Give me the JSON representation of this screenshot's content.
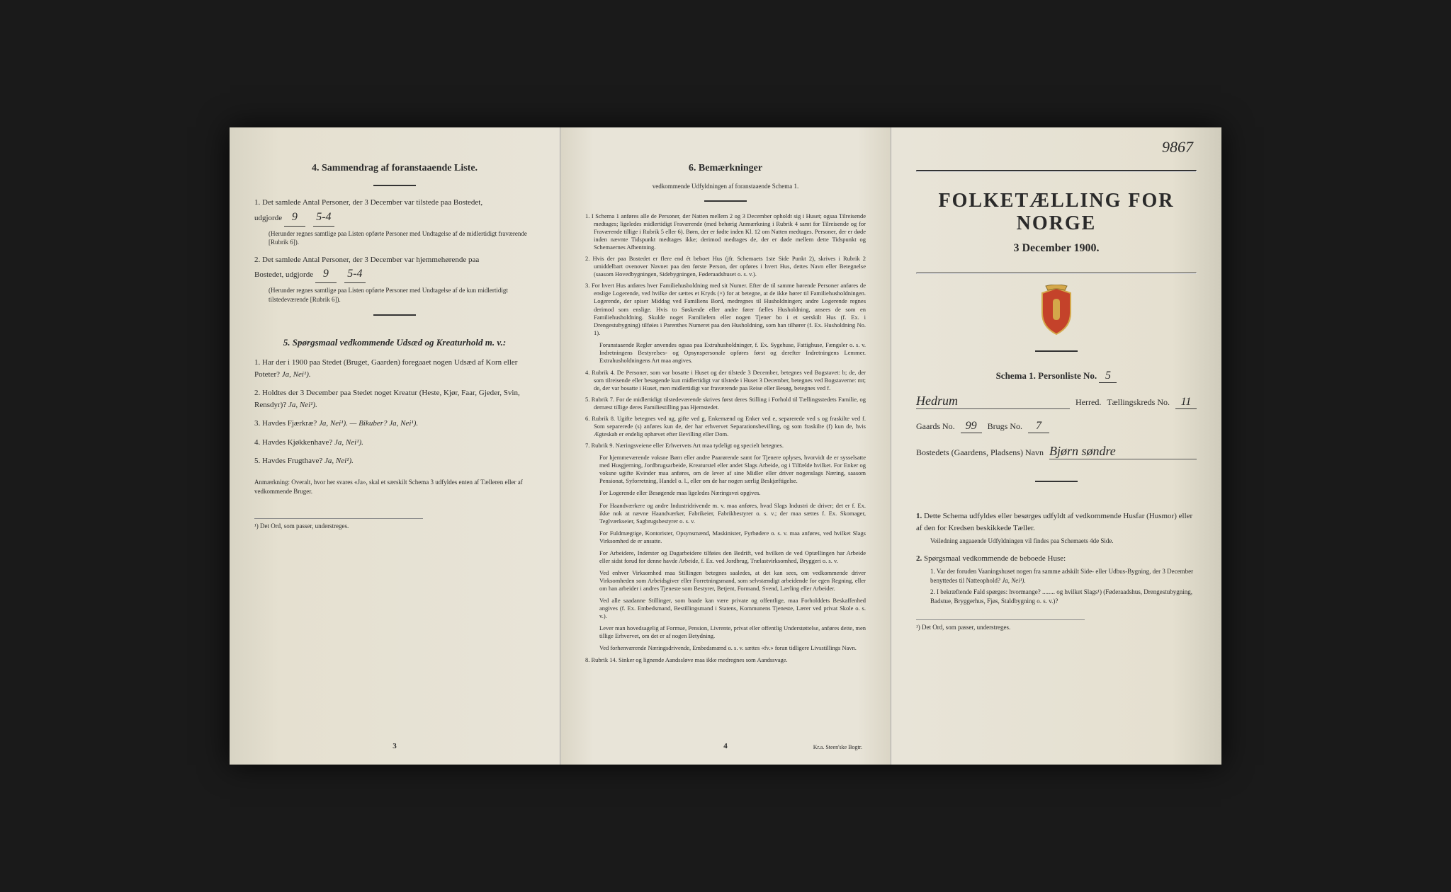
{
  "handwritten_page_number": "9867",
  "left_page": {
    "section4_title": "4. Sammendrag af foranstaaende Liste.",
    "item1": "1. Det samlede Antal Personer, der 3 December var tilstede paa Bostedet,",
    "item1_line2": "udgjorde",
    "item1_value": "9",
    "item1_suffix": "5-4",
    "item1_note": "(Herunder regnes samtlige paa Listen opførte Personer med Undtagelse af de midlertidigt fraværende [Rubrik 6]).",
    "item2": "2. Det samlede Antal Personer, der 3 December var hjemmehørende paa",
    "item2_line2": "Bostedet, udgjorde",
    "item2_value": "9",
    "item2_suffix": "5-4",
    "item2_note": "(Herunder regnes samtlige paa Listen opførte Personer med Undtagelse af de kun midlertidigt tilstedeværende [Rubrik 6]).",
    "section5_title": "5. Spørgsmaal vedkommende Udsæd og Kreaturhold m. v.:",
    "q1": "1. Har der i 1900 paa Stedet (Bruget, Gaarden) foregaaet nogen Udsæd af Korn eller Poteter?",
    "q1_opts": "Ja, Nei¹).",
    "q2": "2. Holdtes der 3 December paa Stedet noget Kreatur (Heste, Kjør, Faar, Gjeder, Svin, Rensdyr)?",
    "q2_opts": "Ja, Nei¹).",
    "q3": "3. Havdes Fjærkræ?",
    "q3_opts": "Ja, Nei¹). — Bikuber? Ja, Nei¹).",
    "q4": "4. Havdes Kjøkkenhave?",
    "q4_opts": "Ja, Nei¹).",
    "q5": "5. Havdes Frugthave?",
    "q5_opts": "Ja, Nei¹).",
    "anm": "Anmærkning: Overalt, hvor her svares «Ja», skal et særskilt Schema 3 udfyldes enten af Tælleren eller af vedkommende Bruger.",
    "footnote": "¹) Det Ord, som passer, understreges.",
    "page_num": "3"
  },
  "middle_page": {
    "section6_title": "6. Bemærkninger",
    "section6_subtitle": "vedkommende Udfyldningen af foranstaaende Schema 1.",
    "items": [
      "1. I Schema 1 anføres alle de Personer, der Natten mellem 2 og 3 December opholdt sig i Huset; ogsaa Tilreisende medtages; ligeledes midlertidigt Fraværende (med behørig Anmærkning i Rubrik 4 samt for Tilreisende og for Fraværende tillige i Rubrik 5 eller 6). Børn, der er fødte inden Kl. 12 om Natten medtages. Personer, der er døde inden nævnte Tidspunkt medtages ikke; derimod medtages de, der er døde mellem dette Tidspunkt og Schemaernes Afhentning.",
      "2. Hvis der paa Bostedet er flere end ét beboet Hus (jfr. Schemaets 1ste Side Punkt 2), skrives i Rubrik 2 umiddelbart ovenover Navnet paa den første Person, der opføres i hvert Hus, dettes Navn eller Betegnelse (saasom Hovedbygningen, Sidebygningen, Føderaadshuset o. s. v.).",
      "3. For hvert Hus anføres hver Familiehusholdning med sit Numer. Efter de til samme hørende Personer anføres de enslige Logerende, ved hvilke der sættes et Kryds (×) for at betegne, at de ikke hører til Familiehusholdningen. Logerende, der spiser Middag ved Familiens Bord, medregnes til Husholdningen; andre Logerende regnes derimod som enslige. Hvis to Søskende eller andre fører fælles Husholdning, ansees de som en Familiehusholdning. Skulde noget Familielem eller nogen Tjener bo i et særskilt Hus (f. Ex. i Drengestubygning) tilføies i Parenthes Numeret paa den Husholdning, som han tilhører (f. Ex. Husholdning No. 1).",
      "4. Rubrik 4. De Personer, som var bosatte i Huset og der tilstede 3 December, betegnes ved Bogstavet: b; de, der som tilreisende eller besøgende kun midlertidigt var tilstede i Huset 3 December, betegnes ved Bogstaverne: mt; de, der var bosatte i Huset, men midlertidigt var fraværende paa Reise eller Besøg, betegnes ved f.",
      "5. Rubrik 7. For de midlertidigt tilstedeværende skrives først deres Stilling i Forhold til Tællingsstedets Familie, og dernæst tillige deres Familiestilling paa Hjemstedet.",
      "6. Rubrik 8. Ugifte betegnes ved ug, gifte ved g, Enkemænd og Enker ved e, separerede ved s og fraskilte ved f. Som separerede (s) anføres kun de, der har erhvervet Separationsbevilling, og som fraskilte (f) kun de, hvis Ægteskab er endelig ophævet efter Bevilling eller Dom.",
      "7. Rubrik 9. Næringsveiene eller Erhvervets Art maa tydeligt og specielt betegnes.",
      "8. Rubrik 14. Sinker og lignende Aandssløve maa ikke medregnes som Aandssvage."
    ],
    "sub_notes": [
      "Foranstaaende Regler anvendes ogsaa paa Extrahusholdninger, f. Ex. Sygehuse, Fattighuse, Fængsler o. s. v. Indretningens Bestyrelses- og Opsynspersonale opføres først og derefter Indretningens Lemmer. Extrahusholdningens Art maa angives.",
      "For hjemmeværende voksne Børn eller andre Paarørende samt for Tjenere oplyses, hvorvidt de er sysselsatte med Husgjerning, Jordbrugsarbeide, Kreaturstel eller andet Slags Arbeide, og i Tilfælde hvilket. For Enker og voksne ugifte Kvinder maa anføres, om de lever af sine Midler eller driver nogenslags Næring, saasom Pensionat, Syforretning, Handel o. l., eller om de har nogen særlig Beskjæftigelse.",
      "For Logerende eller Besøgende maa ligeledes Næringsvei opgives.",
      "For Haandværkere og andre Industridrivende m. v. maa anføres, hvad Slags Industri de driver; det er f. Ex. ikke nok at nævne Haandværker, Fabrikeier, Fabrikbestyrer o. s. v.; der maa sættes f. Ex. Skomager, Teglværkseier, Sagbrugsbestyrer o. s. v.",
      "For Fuldmægtige, Kontorister, Opsynsmænd, Maskinister, Fyrbødere o. s. v. maa anføres, ved hvilket Slags Virksomhed de er ansatte.",
      "For Arbeidere, Inderster og Dagarbeidere tilføies den Bedrift, ved hvilken de ved Optællingen har Arbeide eller sidst forud for denne havde Arbeide, f. Ex. ved Jordbrug, Trælastvirksomhed, Bryggeri o. s. v.",
      "Ved enhver Virksomhed maa Stillingen betegnes saaledes, at det kan sees, om vedkommende driver Virksomheden som Arbeidsgiver eller Forretningsmand, som selvstændigt arbeidende for egen Regning, eller om han arbeider i andres Tjeneste som Bestyrer, Betjent, Formand, Svend, Lærling eller Arbeider.",
      "Ved alle saadanne Stillinger, som baade kan være private og offentlige, maa Forholddets Beskaffenhed angives (f. Ex. Embedsmand, Bestillingsmand i Statens, Kommunens Tjeneste, Lærer ved privat Skole o. s. v.).",
      "Lever man hovedsagelig af Formue, Pension, Livrente, privat eller offentlig Understøttelse, anføres dette, men tillige Erhvervet, om det er af nogen Betydning.",
      "Ved forhenværende Næringsdrivende, Embedsmænd o. s. v. sættes «fv.» foran tidligere Livsstillings Navn."
    ],
    "page_num": "4",
    "printer": "Kr.a. Steen'ske Bogtr."
  },
  "right_page": {
    "main_title": "FOLKETÆLLING FOR NORGE",
    "date": "3 December 1900.",
    "schema_label": "Schema 1.  Personliste No.",
    "schema_no": "5",
    "herred_value": "Hedrum",
    "herred_label": "Herred.",
    "taelling_label": "Tællingskreds No.",
    "taelling_no": "11",
    "gaards_label": "Gaards No.",
    "gaards_no": "99",
    "brugs_label": "Brugs No.",
    "brugs_no": "7",
    "bosted_label": "Bostedets (Gaardens, Pladsens) Navn",
    "bosted_value": "Bjørn søndre",
    "instr1_num": "1.",
    "instr1": "Dette Schema udfyldes eller besørges udfyldt af vedkommende Husfar (Husmor) eller af den for Kredsen beskikkede Tæller.",
    "instr1_note": "Veiledning angaaende Udfyldningen vil findes paa Schemaets 4de Side.",
    "instr2_num": "2.",
    "instr2": "Spørgsmaal vedkommende de beboede Huse:",
    "instr2_q1": "1. Var der foruden Vaaningshuset nogen fra samme adskilt Side- eller Udbus-Bygning, der 3 December benyttedes til Natteophold?",
    "instr2_q1_opts": "Ja, Nei¹).",
    "instr2_q2": "2. I bekræftende Fald spørges: hvormange? ........ og hvilket Slags¹) (Føderaadshus, Drengestubygning, Badstue, Bryggerhus, Fjøs, Staldbygning o. s. v.)?",
    "footnote": "¹) Det Ord, som passer, understreges."
  }
}
